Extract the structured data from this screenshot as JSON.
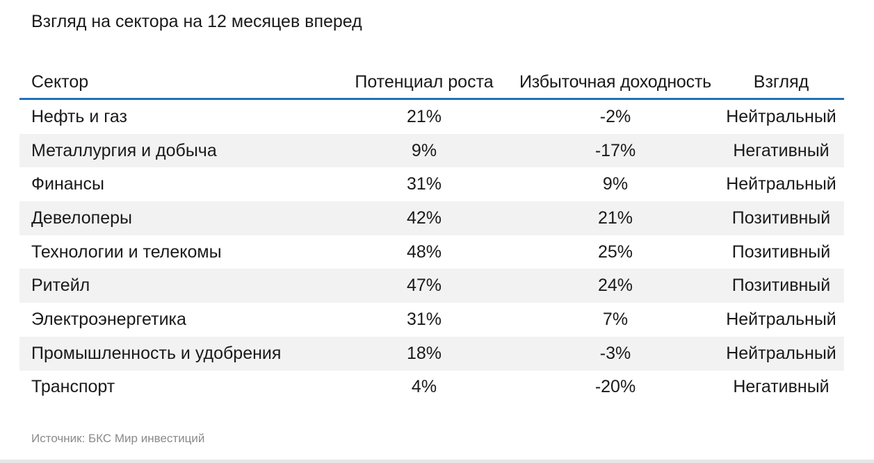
{
  "title": "Взгляд на сектора на 12 месяцев вперед",
  "table": {
    "headers": {
      "sector": "Сектор",
      "potential": "Потенциал роста",
      "excess": "Избыточная доходность",
      "view": "Взгляд"
    },
    "rows": [
      {
        "sector": "Нефть и газ",
        "potential": "21%",
        "excess": "-2%",
        "view": "Нейтральный"
      },
      {
        "sector": "Металлургия и добыча",
        "potential": "9%",
        "excess": "-17%",
        "view": "Негативный"
      },
      {
        "sector": "Финансы",
        "potential": "31%",
        "excess": "9%",
        "view": "Нейтральный"
      },
      {
        "sector": "Девелоперы",
        "potential": "42%",
        "excess": "21%",
        "view": "Позитивный"
      },
      {
        "sector": "Технологии и телекомы",
        "potential": "48%",
        "excess": "25%",
        "view": "Позитивный"
      },
      {
        "sector": "Ритейл",
        "potential": "47%",
        "excess": "24%",
        "view": "Позитивный"
      },
      {
        "sector": "Электроэнергетика",
        "potential": "31%",
        "excess": "7%",
        "view": "Нейтральный"
      },
      {
        "sector": "Промышленность и удобрения",
        "potential": "18%",
        "excess": "-3%",
        "view": "Нейтральный"
      },
      {
        "sector": "Транспорт",
        "potential": "4%",
        "excess": "-20%",
        "view": "Негативный"
      }
    ]
  },
  "source": "Источник: БКС Мир инвестиций",
  "colors": {
    "header_rule": "#1f72b8",
    "row_shade": "#f2f2f2",
    "source_text": "#8a8a8a"
  }
}
